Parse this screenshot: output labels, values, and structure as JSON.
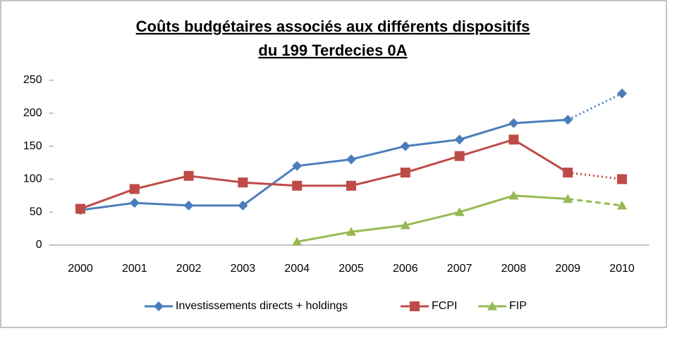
{
  "chart_data": {
    "type": "line",
    "title": "Coûts budgétaires associés aux différents dispositifs",
    "subtitle": "du 199 Terdecies 0A",
    "categories": [
      "2000",
      "2001",
      "2002",
      "2003",
      "2004",
      "2005",
      "2006",
      "2007",
      "2008",
      "2009",
      "2010"
    ],
    "series": [
      {
        "name": "Investissements directs + holdings",
        "color": "#4a7ebb",
        "marker": "diamond",
        "values": [
          53,
          64,
          60,
          60,
          120,
          130,
          150,
          160,
          185,
          190,
          230
        ]
      },
      {
        "name": "FCPI",
        "color": "#be4b48",
        "marker": "square",
        "values": [
          55,
          85,
          105,
          95,
          90,
          90,
          110,
          135,
          160,
          110,
          100
        ]
      },
      {
        "name": "FIP",
        "color": "#98b954",
        "marker": "triangle",
        "values": [
          null,
          null,
          null,
          null,
          5,
          20,
          30,
          50,
          75,
          70,
          60
        ]
      }
    ],
    "ylim": [
      0,
      250
    ],
    "yticks": [
      0,
      50,
      100,
      150,
      200,
      250
    ],
    "grid": false,
    "legend": "bottom"
  }
}
